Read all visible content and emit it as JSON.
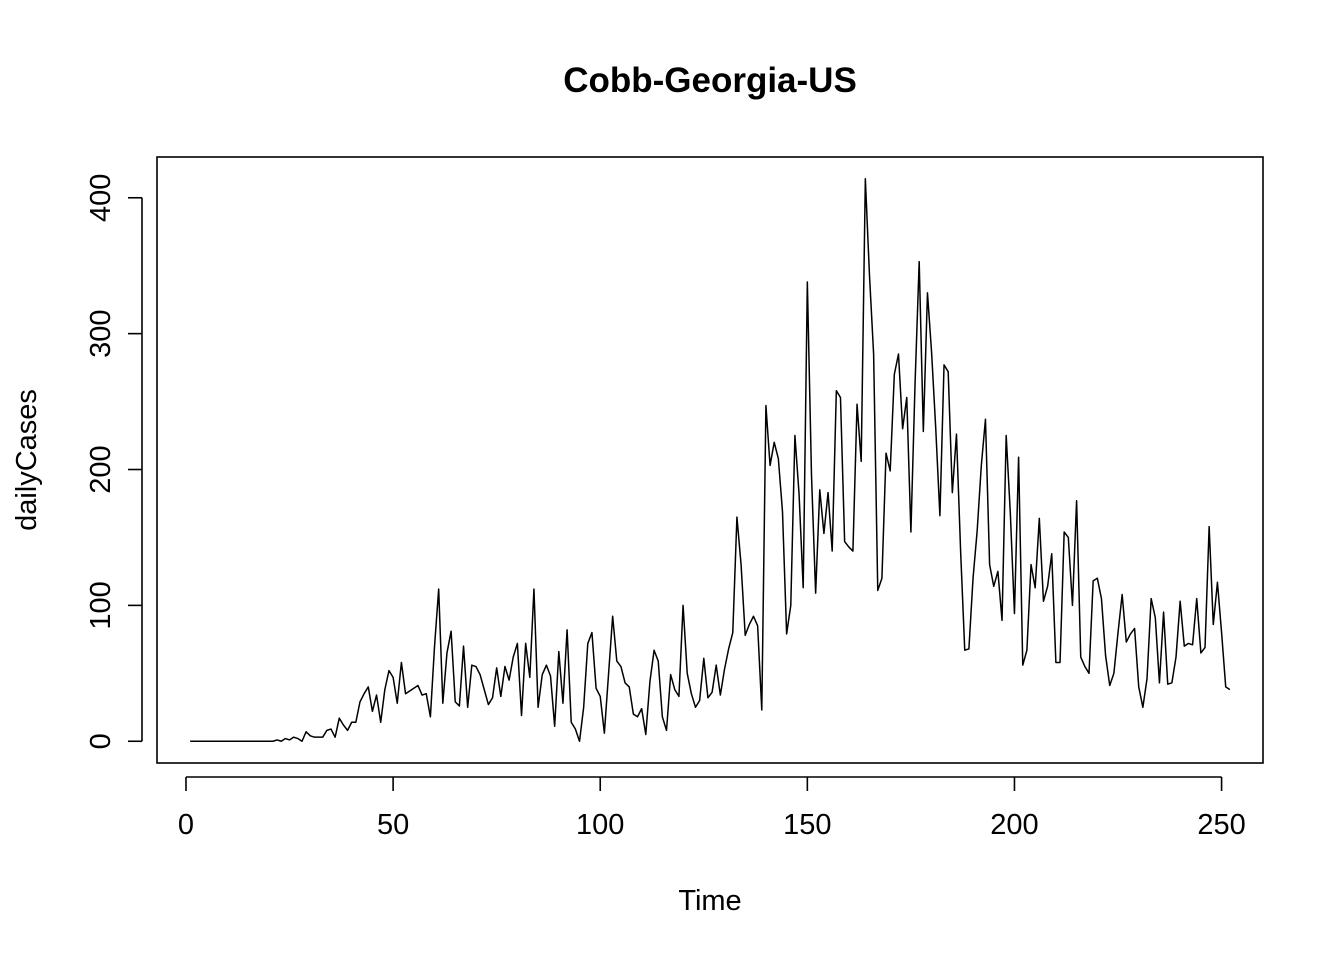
{
  "chart_data": {
    "type": "line",
    "title": "Cobb-Georgia-US",
    "xlabel": "Time",
    "ylabel": "dailyCases",
    "xlim": [
      -7,
      260
    ],
    "ylim": [
      -16,
      430
    ],
    "xticks": [
      0,
      50,
      100,
      150,
      200,
      250
    ],
    "yticks": [
      0,
      100,
      200,
      300,
      400
    ],
    "grid": false,
    "legend": "none",
    "colors": {
      "line": "#000000",
      "background": "#ffffff"
    },
    "series": [
      {
        "values": [
          0,
          0,
          0,
          0,
          0,
          0,
          0,
          0,
          0,
          0,
          0,
          0,
          0,
          0,
          0,
          0,
          0,
          0,
          0,
          0,
          0,
          1,
          0,
          2,
          1,
          3,
          2,
          0,
          7,
          4,
          3,
          3,
          3,
          8,
          9,
          3,
          17,
          12,
          8,
          14,
          14,
          29,
          35,
          40,
          22,
          34,
          14,
          38,
          52,
          47,
          28,
          58,
          35,
          37,
          39,
          41,
          34,
          35,
          18,
          70,
          112,
          28,
          65,
          81,
          29,
          26,
          70,
          25,
          56,
          55,
          49,
          38,
          27,
          32,
          54,
          33,
          55,
          45,
          62,
          72,
          19,
          72,
          47,
          112,
          25,
          49,
          56,
          48,
          11,
          66,
          28,
          82,
          14,
          9,
          0,
          25,
          72,
          80,
          39,
          33,
          6,
          49,
          92,
          59,
          55,
          43,
          40,
          20,
          18,
          24,
          5,
          44,
          67,
          59,
          18,
          8,
          49,
          38,
          33,
          100,
          50,
          35,
          25,
          30,
          61,
          32,
          36,
          56,
          34,
          53,
          68,
          80,
          165,
          130,
          78,
          86,
          92,
          85,
          23,
          247,
          203,
          220,
          208,
          169,
          79,
          100,
          225,
          182,
          113,
          338,
          196,
          109,
          185,
          153,
          183,
          140,
          258,
          253,
          147,
          143,
          140,
          248,
          206,
          414,
          343,
          285,
          111,
          120,
          212,
          199,
          270,
          285,
          230,
          253,
          154,
          263,
          353,
          228,
          330,
          286,
          230,
          166,
          277,
          272,
          183,
          226,
          140,
          67,
          68,
          120,
          155,
          203,
          237,
          130,
          114,
          125,
          89,
          225,
          168,
          94,
          209,
          56,
          67,
          130,
          113,
          164,
          103,
          114,
          138,
          58,
          58,
          154,
          150,
          100,
          177,
          62,
          55,
          50,
          118,
          120,
          105,
          63,
          41,
          50,
          80,
          108,
          73,
          79,
          83,
          40,
          25,
          46,
          105,
          91,
          43,
          95,
          42,
          43,
          62,
          103,
          70,
          72,
          71,
          105,
          65,
          69,
          158,
          86,
          117,
          80,
          40,
          38
        ]
      }
    ]
  }
}
